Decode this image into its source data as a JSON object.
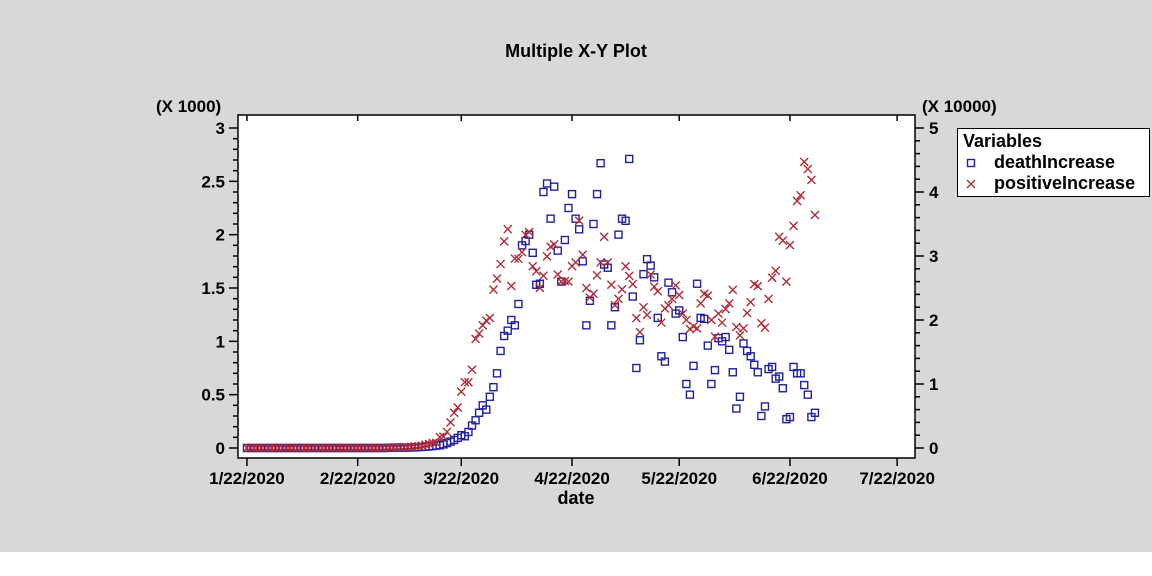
{
  "window": {
    "background_color": "#d8d8d8",
    "plot_background_color": "#ffffff"
  },
  "chart_data": {
    "type": "scatter",
    "title": "Multiple X-Y Plot",
    "xlabel": "date",
    "grid": "off",
    "x_tick_labels": [
      "1/22/2020",
      "2/22/2020",
      "3/22/2020",
      "4/22/2020",
      "5/22/2020",
      "6/22/2020",
      "7/22/2020"
    ],
    "x_tick_days": [
      0,
      31,
      60,
      91,
      121,
      152,
      182
    ],
    "x_domain_days": [
      -2.5,
      187
    ],
    "left_axis": {
      "scale_label": "(X 1000)",
      "tick_values": [
        0,
        0.5,
        1,
        1.5,
        2,
        2.5,
        3
      ],
      "tick_labels": [
        "0",
        "0.5",
        "1",
        "1.5",
        "2",
        "2.5",
        "3"
      ],
      "range": [
        0,
        3
      ],
      "minor_step": 0.1,
      "unit": 1000
    },
    "right_axis": {
      "scale_label": "(X 10000)",
      "tick_values": [
        0,
        1,
        2,
        3,
        4,
        5
      ],
      "tick_labels": [
        "0",
        "1",
        "2",
        "3",
        "4",
        "5"
      ],
      "range": [
        0,
        5
      ],
      "minor_step": 0.2,
      "unit": 10000
    },
    "legend": {
      "title": "Variables",
      "position": "top-right-outside",
      "entries": [
        {
          "label": "deathIncrease",
          "marker": "square",
          "color": "#2020A0"
        },
        {
          "label": "positiveIncrease",
          "marker": "x",
          "color": "#B02C38"
        }
      ]
    },
    "series": [
      {
        "name": "deathIncrease",
        "axis": "left",
        "marker": "square",
        "color": "#2020A0",
        "start_date": "1/22/2020",
        "interval": "daily",
        "values": [
          0,
          0,
          0,
          0,
          0,
          0,
          0,
          0,
          0,
          0,
          0,
          0,
          0,
          0,
          0,
          0,
          0,
          0,
          0,
          0,
          0,
          0,
          0,
          0,
          0,
          0,
          0,
          0,
          0,
          0,
          0,
          0,
          0,
          0,
          0,
          0,
          0,
          0,
          0,
          1,
          2,
          4,
          3,
          5,
          3,
          4,
          5,
          6,
          8,
          10,
          12,
          15,
          18,
          22,
          26,
          34,
          46,
          60,
          75,
          95,
          120,
          110,
          150,
          210,
          260,
          330,
          400,
          360,
          480,
          570,
          700,
          910,
          1050,
          1100,
          1200,
          1150,
          1350,
          1900,
          1940,
          2000,
          1830,
          1530,
          1540,
          2400,
          2480,
          2150,
          2450,
          1850,
          1560,
          1950,
          2250,
          2380,
          2150,
          2050,
          1750,
          1150,
          1380,
          2100,
          2380,
          2670,
          1720,
          1690,
          1150,
          1320,
          2000,
          2150,
          2130,
          2710,
          1420,
          750,
          1010,
          1630,
          1770,
          1710,
          1600,
          1220,
          860,
          810,
          1550,
          1460,
          1260,
          1290,
          1040,
          600,
          500,
          770,
          1540,
          1220,
          1210,
          960,
          600,
          730,
          1030,
          1000,
          1040,
          920,
          710,
          370,
          480,
          980,
          910,
          860,
          780,
          710,
          300,
          390,
          740,
          760,
          650,
          670,
          560,
          270,
          290,
          760,
          700,
          700,
          590,
          500,
          290,
          330
        ]
      },
      {
        "name": "positiveIncrease",
        "axis": "right",
        "marker": "x",
        "color": "#B02C38",
        "start_date": "1/22/2020",
        "interval": "daily",
        "values": [
          0,
          0,
          0,
          0,
          0,
          0,
          0,
          0,
          0,
          0,
          0,
          0,
          0,
          0,
          0,
          0,
          0,
          0,
          0,
          0,
          0,
          0,
          0,
          0,
          0,
          0,
          0,
          0,
          0,
          0,
          0,
          0,
          0,
          0,
          0,
          0,
          0,
          0,
          0,
          30,
          25,
          25,
          35,
          80,
          110,
          120,
          180,
          250,
          290,
          370,
          500,
          620,
          780,
          800,
          1700,
          1780,
          2530,
          4000,
          5500,
          6340,
          8800,
          10300,
          10270,
          12230,
          17050,
          17880,
          19160,
          19900,
          20310,
          24740,
          26470,
          28740,
          32280,
          34200,
          25320,
          29600,
          29560,
          30610,
          33320,
          33750,
          28390,
          27620,
          25020,
          26920,
          29940,
          31450,
          31810,
          27110,
          26000,
          26090,
          25990,
          28420,
          29000,
          35500,
          30200,
          25000,
          23500,
          24100,
          27000,
          29000,
          33000,
          29000,
          25500,
          22300,
          23300,
          24800,
          28400,
          26900,
          25600,
          20300,
          18100,
          22000,
          20800,
          27100,
          25200,
          24500,
          19600,
          21800,
          22300,
          23300,
          25400,
          23900,
          21000,
          20000,
          18600,
          19000,
          18700,
          22600,
          24100,
          23800,
          20000,
          17400,
          21000,
          19600,
          21700,
          22600,
          24700,
          18900,
          17600,
          18700,
          21100,
          22800,
          25600,
          25300,
          19500,
          18800,
          23300,
          26600,
          27700,
          33000,
          32400,
          26000,
          31700,
          34700,
          38600,
          39500,
          44700,
          43600,
          41900,
          36400
        ]
      }
    ]
  }
}
